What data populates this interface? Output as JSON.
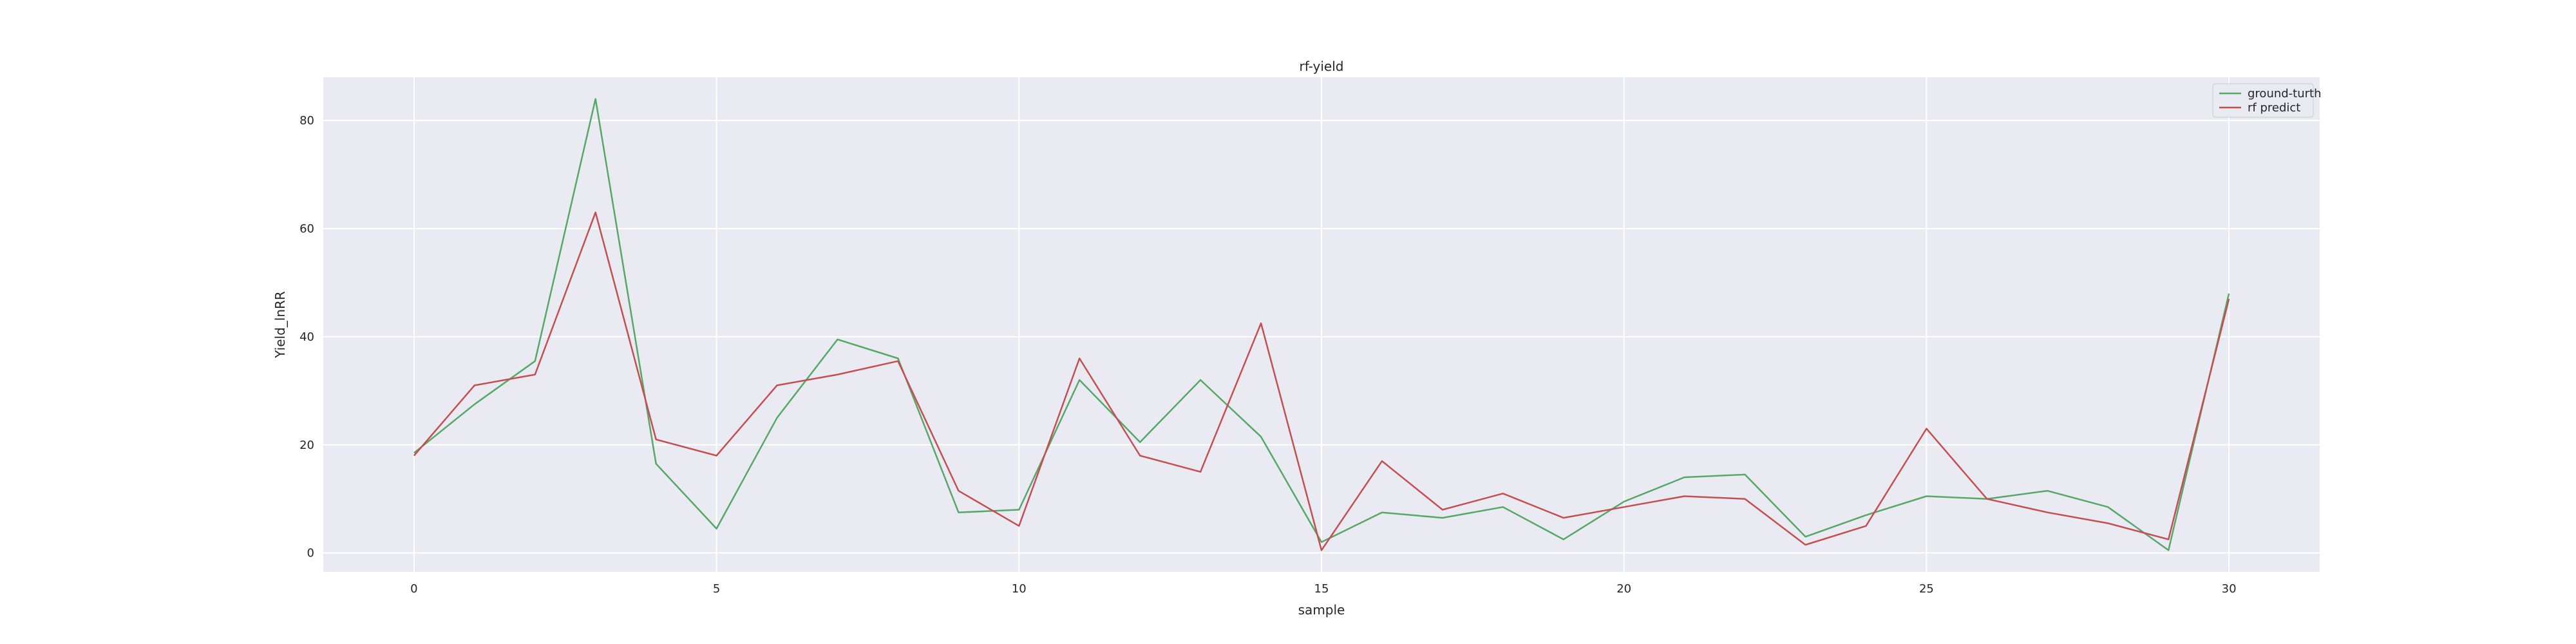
{
  "chart_data": {
    "type": "line",
    "title": "rf-yield",
    "xlabel": "sample",
    "ylabel": "Yield_lnRR",
    "xlim": [
      -1.5,
      31.5
    ],
    "ylim": [
      -3.5,
      88
    ],
    "xticks": [
      0,
      5,
      10,
      15,
      20,
      25,
      30
    ],
    "yticks": [
      0,
      20,
      40,
      60,
      80
    ],
    "grid": true,
    "legend_position": "top-right",
    "x": [
      0,
      1,
      2,
      3,
      4,
      5,
      6,
      7,
      8,
      9,
      10,
      11,
      12,
      13,
      14,
      15,
      16,
      17,
      18,
      19,
      20,
      21,
      22,
      23,
      24,
      25,
      26,
      27,
      28,
      29,
      30
    ],
    "series": [
      {
        "name": "ground-turth",
        "color": "#55a868",
        "values": [
          18.5,
          27.5,
          35.5,
          84.0,
          16.5,
          4.5,
          25.0,
          39.5,
          36.0,
          7.5,
          8.0,
          32.0,
          20.5,
          32.0,
          21.5,
          2.0,
          7.5,
          6.5,
          8.5,
          2.5,
          9.5,
          14.0,
          14.5,
          3.0,
          7.0,
          10.5,
          10.0,
          11.5,
          8.5,
          0.5,
          48.0
        ]
      },
      {
        "name": "rf predict",
        "color": "#c44e52",
        "values": [
          18.0,
          31.0,
          33.0,
          63.0,
          21.0,
          18.0,
          31.0,
          33.0,
          35.5,
          11.5,
          5.0,
          36.0,
          18.0,
          15.0,
          42.5,
          0.5,
          17.0,
          8.0,
          11.0,
          6.5,
          8.5,
          10.5,
          10.0,
          1.5,
          5.0,
          23.0,
          10.0,
          7.5,
          5.5,
          2.5,
          47.0
        ]
      }
    ]
  }
}
